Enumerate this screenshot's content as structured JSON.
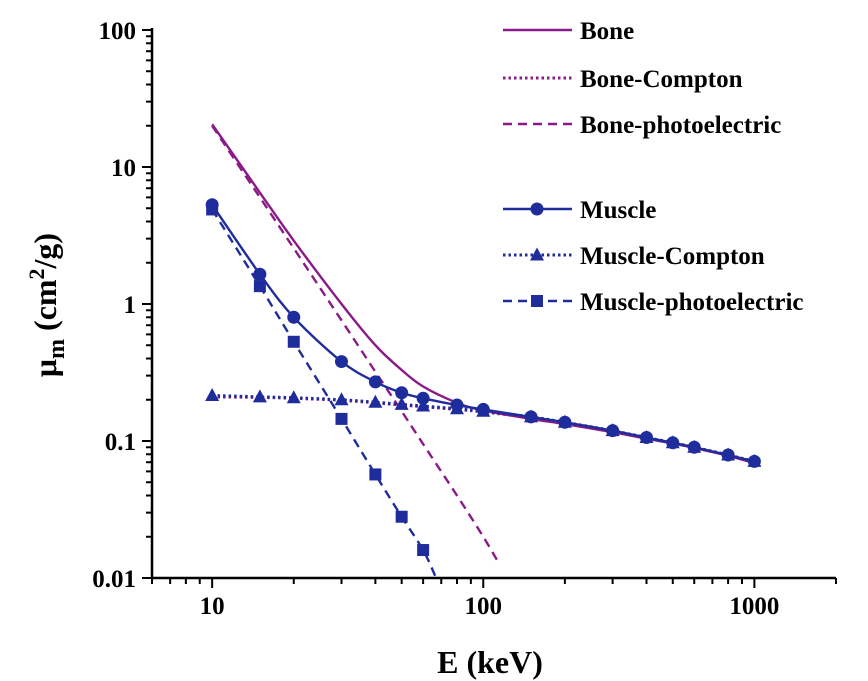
{
  "chart_data": {
    "type": "line",
    "title": "",
    "xlabel": "E (keV)",
    "ylabel": {
      "symbol": "μ",
      "sub": "m",
      "unit_before": " (cm",
      "sup": "2",
      "unit_after": "/g)"
    },
    "x_scale": "log",
    "y_scale": "log",
    "xlim": [
      6,
      2000
    ],
    "ylim": [
      0.01,
      100
    ],
    "x_ticks": [
      10,
      100,
      1000
    ],
    "x_tick_labels": [
      "10",
      "100",
      "1000"
    ],
    "y_ticks": [
      0.01,
      0.1,
      1,
      10,
      100
    ],
    "y_tick_labels": [
      "0.01",
      "0.1",
      "1",
      "10",
      "100"
    ],
    "grid": false,
    "legend_position": "top-right",
    "colors": {
      "bone": "#8b1a89",
      "muscle": "#1f2d9c"
    },
    "series": [
      {
        "name": "Bone",
        "color": "#8b1a89",
        "line": "solid",
        "marker": "none",
        "x": [
          10,
          15,
          20,
          30,
          40,
          50,
          60,
          80,
          100,
          150,
          200,
          300,
          400,
          500,
          600,
          800,
          1000
        ],
        "y": [
          20.5,
          6.5,
          2.9,
          1.0,
          0.5,
          0.33,
          0.25,
          0.19,
          0.167,
          0.145,
          0.133,
          0.116,
          0.104,
          0.096,
          0.089,
          0.078,
          0.069
        ]
      },
      {
        "name": "Bone-Compton",
        "color": "#8b1a89",
        "line": "dotted",
        "marker": "none",
        "x": [
          10,
          15,
          20,
          30,
          40,
          50,
          60,
          80,
          100,
          150,
          200,
          300,
          400,
          500,
          600,
          800,
          1000
        ],
        "y": [
          0.21,
          0.208,
          0.205,
          0.198,
          0.19,
          0.183,
          0.178,
          0.17,
          0.163,
          0.148,
          0.136,
          0.118,
          0.106,
          0.097,
          0.09,
          0.079,
          0.07
        ]
      },
      {
        "name": "Bone-photoelectric",
        "color": "#8b1a89",
        "line": "dashed",
        "marker": "none",
        "x": [
          10,
          15,
          20,
          30,
          40,
          50,
          60,
          80,
          100,
          115
        ],
        "y": [
          20.0,
          6.0,
          2.55,
          0.76,
          0.32,
          0.165,
          0.095,
          0.04,
          0.02,
          0.0125
        ]
      },
      {
        "name": "Muscle",
        "color": "#1f2d9c",
        "line": "solid",
        "marker": "circle",
        "x": [
          10,
          15,
          20,
          30,
          40,
          50,
          60,
          80,
          100,
          150,
          200,
          300,
          400,
          500,
          600,
          800,
          1000
        ],
        "y": [
          5.3,
          1.65,
          0.8,
          0.38,
          0.27,
          0.225,
          0.205,
          0.183,
          0.17,
          0.15,
          0.137,
          0.119,
          0.106,
          0.097,
          0.09,
          0.079,
          0.071
        ]
      },
      {
        "name": "Muscle-Compton",
        "color": "#1f2d9c",
        "line": "dotted",
        "marker": "triangle",
        "x": [
          10,
          15,
          20,
          30,
          40,
          50,
          60,
          80,
          100,
          150,
          200,
          300,
          400,
          500,
          600,
          800,
          1000
        ],
        "y": [
          0.215,
          0.21,
          0.207,
          0.2,
          0.192,
          0.185,
          0.18,
          0.172,
          0.165,
          0.15,
          0.137,
          0.119,
          0.106,
          0.097,
          0.09,
          0.079,
          0.071
        ]
      },
      {
        "name": "Muscle-photoelectric",
        "color": "#1f2d9c",
        "line": "dashed",
        "marker": "square",
        "x": [
          10,
          15,
          20,
          30,
          40,
          50,
          60
        ],
        "y": [
          4.9,
          1.35,
          0.53,
          0.145,
          0.057,
          0.028,
          0.016
        ],
        "line_extends_to": [
          67,
          0.01
        ]
      }
    ]
  }
}
